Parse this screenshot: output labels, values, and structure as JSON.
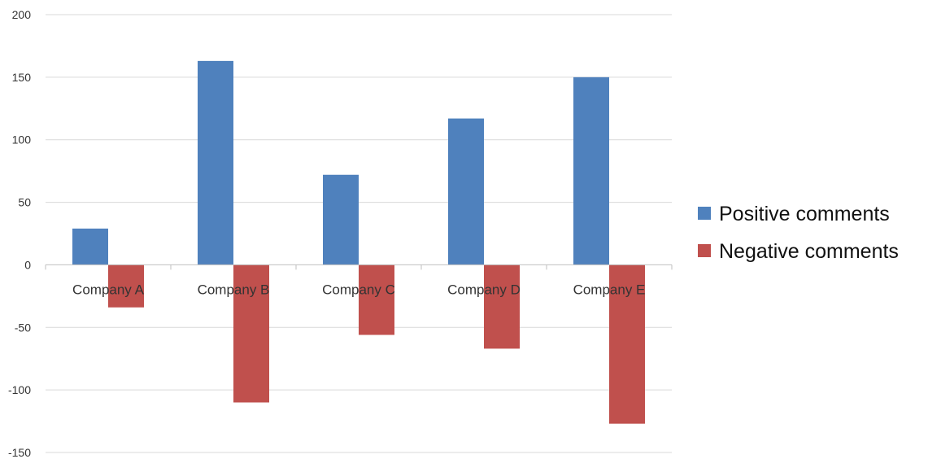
{
  "chart_data": {
    "type": "bar",
    "categories": [
      "Company A",
      "Company B",
      "Company C",
      "Company D",
      "Company E"
    ],
    "series": [
      {
        "name": "Positive comments",
        "color": "#4f81bd",
        "values": [
          29,
          163,
          72,
          117,
          150
        ]
      },
      {
        "name": "Negative comments",
        "color": "#c0504d",
        "values": [
          -34,
          -110,
          -56,
          -67,
          -127
        ]
      }
    ],
    "title": "",
    "xlabel": "",
    "ylabel": "",
    "ylim": [
      -150,
      200
    ],
    "yticks": [
      200,
      150,
      100,
      50,
      0,
      -50,
      -100,
      -150
    ],
    "ytick_labels": [
      "200",
      "150",
      "100",
      "50",
      "0",
      "-50",
      "-100",
      "-150"
    ],
    "grid": true,
    "legend_position": "right"
  }
}
